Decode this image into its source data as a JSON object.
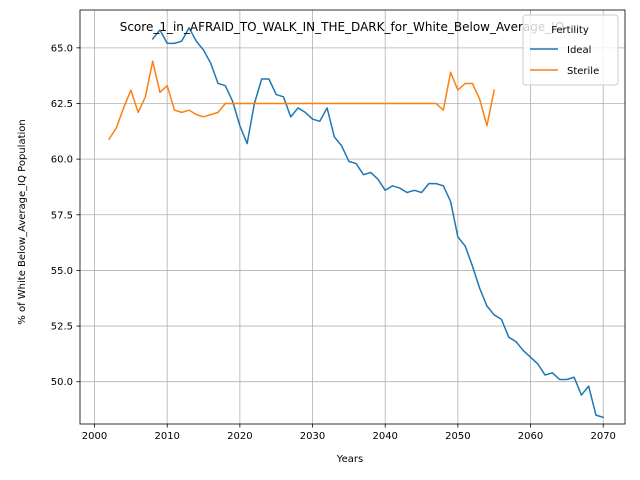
{
  "chart_data": {
    "type": "line",
    "title": "Score_1_in_AFRAID_TO_WALK_IN_THE_DARK_for_White_Below_Average_IQ",
    "xlabel": "Years",
    "ylabel": "% of White Below_Average_IQ Population",
    "xlim": [
      1998,
      2073
    ],
    "ylim": [
      48.1,
      66.7
    ],
    "xticks": [
      2000,
      2010,
      2020,
      2030,
      2040,
      2050,
      2060,
      2070
    ],
    "yticks": [
      50.0,
      52.5,
      55.0,
      57.5,
      60.0,
      62.5,
      65.0
    ],
    "ytick_labels": [
      "50.0",
      "52.5",
      "55.0",
      "57.5",
      "60.0",
      "62.5",
      "65.0"
    ],
    "grid": true,
    "legend": {
      "title": "Fertility",
      "position": "top-right"
    },
    "series": [
      {
        "name": "Ideal",
        "color": "#1f77b4",
        "x": [
          2008,
          2009,
          2010,
          2011,
          2012,
          2013,
          2014,
          2015,
          2016,
          2017,
          2018,
          2019,
          2020,
          2021,
          2022,
          2023,
          2024,
          2025,
          2026,
          2027,
          2028,
          2029,
          2030,
          2031,
          2032,
          2033,
          2034,
          2035,
          2036,
          2037,
          2038,
          2039,
          2040,
          2041,
          2042,
          2043,
          2044,
          2045,
          2046,
          2047,
          2048,
          2049,
          2050,
          2051,
          2052,
          2053,
          2054,
          2055,
          2056,
          2057,
          2058,
          2059,
          2060,
          2061,
          2062,
          2063,
          2064,
          2065,
          2066,
          2067,
          2068,
          2069,
          2070
        ],
        "values": [
          65.4,
          65.8,
          65.2,
          65.2,
          65.3,
          65.9,
          65.3,
          64.9,
          64.3,
          63.4,
          63.3,
          62.6,
          61.5,
          60.7,
          62.5,
          63.6,
          63.6,
          62.9,
          62.8,
          61.9,
          62.3,
          62.1,
          61.8,
          61.7,
          62.3,
          61.0,
          60.6,
          59.9,
          59.8,
          59.3,
          59.4,
          59.1,
          58.6,
          58.8,
          58.7,
          58.5,
          58.6,
          58.5,
          58.9,
          58.9,
          58.8,
          58.1,
          56.5,
          56.1,
          55.2,
          54.2,
          53.4,
          53.0,
          52.8,
          52.0,
          51.8,
          51.4,
          51.1,
          50.8,
          50.3,
          50.4,
          50.1,
          50.1,
          50.2,
          49.4,
          49.8,
          48.5,
          48.4
        ]
      },
      {
        "name": "Sterile",
        "color": "#ff7f0e",
        "x": [
          2002,
          2003,
          2004,
          2005,
          2006,
          2007,
          2008,
          2009,
          2010,
          2011,
          2012,
          2013,
          2014,
          2015,
          2016,
          2017,
          2018,
          2019,
          2020,
          2021,
          2022,
          2023,
          2024,
          2025,
          2026,
          2027,
          2028,
          2029,
          2030,
          2031,
          2032,
          2033,
          2034,
          2035,
          2036,
          2037,
          2038,
          2039,
          2040,
          2041,
          2042,
          2043,
          2044,
          2045,
          2046,
          2047,
          2048,
          2049,
          2050,
          2051,
          2052,
          2053,
          2054,
          2055
        ],
        "values": [
          60.9,
          61.4,
          62.3,
          63.1,
          62.1,
          62.8,
          64.4,
          63.0,
          63.3,
          62.2,
          62.1,
          62.2,
          62.0,
          61.9,
          62.0,
          62.1,
          62.5,
          62.5,
          62.5,
          62.5,
          62.5,
          62.5,
          62.5,
          62.5,
          62.5,
          62.5,
          62.5,
          62.5,
          62.5,
          62.5,
          62.5,
          62.5,
          62.5,
          62.5,
          62.5,
          62.5,
          62.5,
          62.5,
          62.5,
          62.5,
          62.5,
          62.5,
          62.5,
          62.5,
          62.5,
          62.5,
          62.2,
          63.9,
          63.1,
          63.4,
          63.4,
          62.7,
          61.5,
          63.1
        ]
      }
    ]
  }
}
